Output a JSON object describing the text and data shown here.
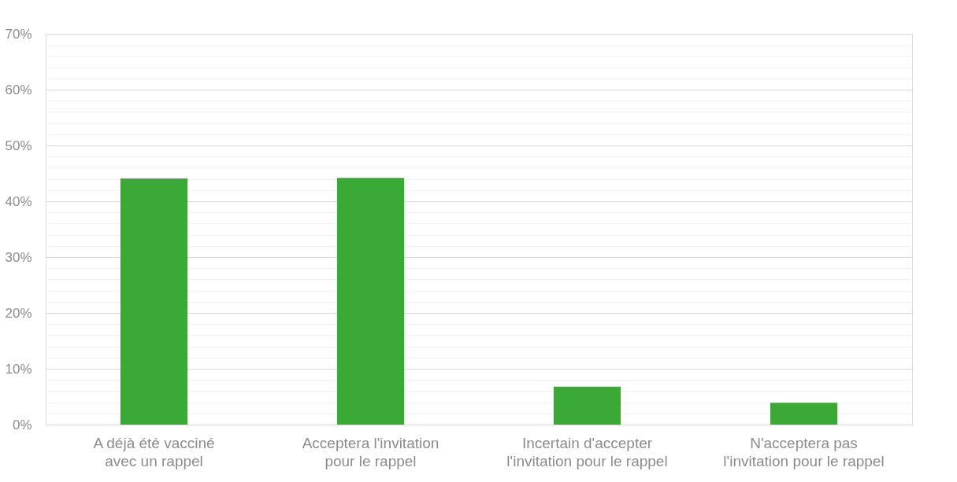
{
  "chart_data": {
    "type": "bar",
    "categories": [
      "A déjà été vacciné\navec un rappel",
      "Acceptera l'invitation\npour le rappel",
      "Incertain d'accepter\nl'invitation pour le rappel",
      "N'acceptera pas\nl'invitation pour le rappel"
    ],
    "values": [
      44.1,
      44.2,
      6.8,
      3.9
    ],
    "color": "#3aa935",
    "ylim": [
      0,
      70
    ],
    "yticks": [
      {
        "value": 0,
        "label": "0%"
      },
      {
        "value": 2,
        "label": null
      },
      {
        "value": 4,
        "label": null
      },
      {
        "value": 6,
        "label": null
      },
      {
        "value": 8,
        "label": null
      },
      {
        "value": 10,
        "label": "10%"
      },
      {
        "value": 12,
        "label": null
      },
      {
        "value": 14,
        "label": null
      },
      {
        "value": 16,
        "label": null
      },
      {
        "value": 18,
        "label": null
      },
      {
        "value": 20,
        "label": "20%"
      },
      {
        "value": 22,
        "label": null
      },
      {
        "value": 24,
        "label": null
      },
      {
        "value": 26,
        "label": null
      },
      {
        "value": 28,
        "label": null
      },
      {
        "value": 30,
        "label": "30%"
      },
      {
        "value": 32,
        "label": null
      },
      {
        "value": 34,
        "label": null
      },
      {
        "value": 36,
        "label": null
      },
      {
        "value": 38,
        "label": null
      },
      {
        "value": 40,
        "label": "40%"
      },
      {
        "value": 42,
        "label": null
      },
      {
        "value": 44,
        "label": null
      },
      {
        "value": 46,
        "label": null
      },
      {
        "value": 48,
        "label": null
      },
      {
        "value": 50,
        "label": "50%"
      },
      {
        "value": 52,
        "label": null
      },
      {
        "value": 54,
        "label": null
      },
      {
        "value": 56,
        "label": null
      },
      {
        "value": 58,
        "label": null
      },
      {
        "value": 60,
        "label": "60%"
      },
      {
        "value": 62,
        "label": null
      },
      {
        "value": 64,
        "label": null
      },
      {
        "value": 66,
        "label": null
      },
      {
        "value": 68,
        "label": null
      },
      {
        "value": 70,
        "label": "70%"
      }
    ],
    "grid": true
  }
}
